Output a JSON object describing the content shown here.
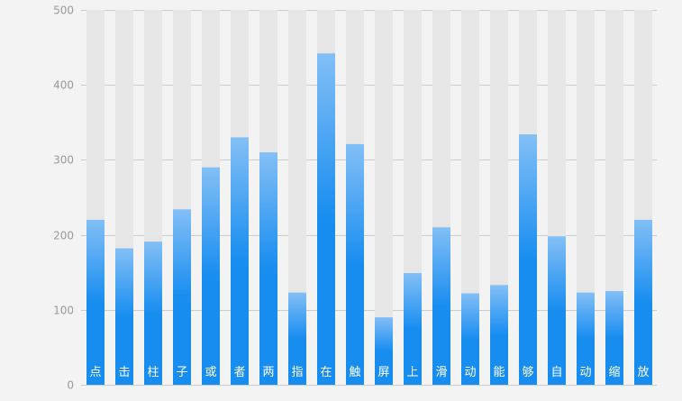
{
  "chart_data": {
    "type": "bar",
    "categories": [
      "点",
      "击",
      "柱",
      "子",
      "或",
      "者",
      "两",
      "指",
      "在",
      "触",
      "屏",
      "上",
      "滑",
      "动",
      "能",
      "够",
      "自",
      "动",
      "缩",
      "放"
    ],
    "values": [
      220,
      182,
      191,
      234,
      290,
      330,
      310,
      123,
      442,
      321,
      90,
      149,
      210,
      122,
      133,
      334,
      198,
      123,
      125,
      220
    ],
    "ylim": [
      0,
      500
    ],
    "yticks": [
      0,
      100,
      200,
      300,
      400,
      500
    ],
    "grid": true,
    "shadow_bars": true,
    "colors": {
      "bar_top": "#83bff6",
      "bar_mid": "#188df0",
      "bar_bottom": "#188df0",
      "shadow": "#e6e6e6",
      "grid": "#cccccc",
      "axis_label": "#999999",
      "category_label": "#ffffff",
      "background": "#f3f3f3"
    }
  }
}
